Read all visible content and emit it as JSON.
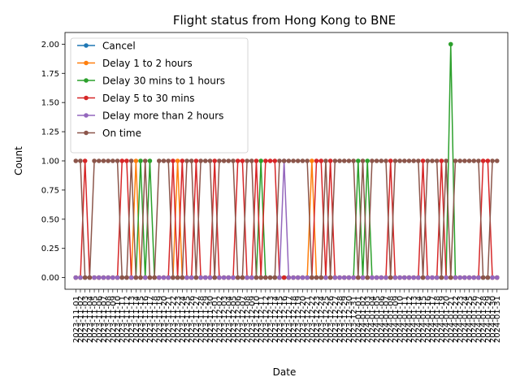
{
  "chart_data": {
    "type": "line",
    "title": "Flight status from Hong Kong to BNE",
    "xlabel": "Date",
    "ylabel": "Count",
    "ylim": [
      -0.1,
      2.1
    ],
    "yticks": [
      "0.00",
      "0.25",
      "0.50",
      "0.75",
      "1.00",
      "1.25",
      "1.50",
      "1.75",
      "2.00"
    ],
    "grid": false,
    "legend_position": "top-left",
    "x": [
      "2023-11-01",
      "2023-11-02",
      "2023-11-03",
      "2023-11-04",
      "2023-11-05",
      "2023-11-06",
      "2023-11-07",
      "2023-11-08",
      "2023-11-09",
      "2023-11-10",
      "2023-11-11",
      "2023-11-12",
      "2023-11-13",
      "2023-11-14",
      "2023-11-15",
      "2023-11-16",
      "2023-11-17",
      "2023-11-18",
      "2023-11-19",
      "2023-11-20",
      "2023-11-21",
      "2023-11-22",
      "2023-11-23",
      "2023-11-24",
      "2023-11-25",
      "2023-11-26",
      "2023-11-27",
      "2023-11-28",
      "2023-11-29",
      "2023-11-30",
      "2023-12-01",
      "2023-12-02",
      "2023-12-03",
      "2023-12-04",
      "2023-12-05",
      "2023-12-06",
      "2023-12-07",
      "2023-12-08",
      "2023-12-09",
      "2023-12-10",
      "2023-12-11",
      "2023-12-12",
      "2023-12-13",
      "2023-12-14",
      "2023-12-15",
      "2023-12-16",
      "2023-12-17",
      "2023-12-18",
      "2023-12-19",
      "2023-12-20",
      "2023-12-21",
      "2023-12-22",
      "2023-12-23",
      "2023-12-24",
      "2023-12-25",
      "2023-12-26",
      "2023-12-27",
      "2023-12-28",
      "2023-12-29",
      "2023-12-30",
      "2023-12-31",
      "2024-01-01",
      "2024-01-02",
      "2024-01-03",
      "2024-01-04",
      "2024-01-05",
      "2024-01-06",
      "2024-01-07",
      "2024-01-08",
      "2024-01-09",
      "2024-01-10",
      "2024-01-11",
      "2024-01-12",
      "2024-01-13",
      "2024-01-14",
      "2024-01-15",
      "2024-01-16",
      "2024-01-17",
      "2024-01-18",
      "2024-01-19",
      "2024-01-20",
      "2024-01-21",
      "2024-01-22",
      "2024-01-23",
      "2024-01-24",
      "2024-01-25",
      "2024-01-26",
      "2024-01-27",
      "2024-01-28",
      "2024-01-29",
      "2024-01-30",
      "2024-01-31"
    ],
    "series": [
      {
        "name": "Cancel",
        "color": "#1f77b4",
        "values": [
          0,
          0,
          0,
          0,
          0,
          0,
          0,
          0,
          0,
          0,
          0,
          0,
          0,
          0,
          0,
          0,
          0,
          0,
          0,
          0,
          0,
          0,
          0,
          0,
          0,
          0,
          0,
          0,
          0,
          0,
          0,
          0,
          0,
          0,
          0,
          0,
          0,
          0,
          0,
          0,
          0,
          0,
          0,
          0,
          0,
          0,
          0,
          0,
          0,
          0,
          0,
          0,
          0,
          0,
          0,
          0,
          0,
          0,
          0,
          0,
          0,
          0,
          0,
          0,
          0,
          0,
          0,
          0,
          0,
          0,
          0,
          0,
          0,
          0,
          0,
          0,
          0,
          0,
          0,
          0,
          0,
          0,
          0,
          0,
          0,
          0,
          0,
          0,
          0,
          0,
          0,
          0
        ]
      },
      {
        "name": "Delay 1 to 2 hours",
        "color": "#ff7f0e",
        "values": [
          0,
          0,
          0,
          0,
          0,
          0,
          0,
          0,
          0,
          0,
          0,
          0,
          0,
          1,
          0,
          0,
          0,
          0,
          0,
          0,
          0,
          0,
          1,
          0,
          0,
          0,
          0,
          0,
          0,
          0,
          0,
          0,
          0,
          0,
          0,
          0,
          0,
          0,
          0,
          0,
          0,
          0,
          0,
          0,
          0,
          0,
          0,
          0,
          0,
          0,
          0,
          1,
          0,
          0,
          0,
          0,
          0,
          0,
          0,
          0,
          0,
          0,
          0,
          0,
          0,
          0,
          0,
          0,
          0,
          0,
          0,
          0,
          0,
          0,
          0,
          0,
          0,
          0,
          0,
          0,
          0,
          0,
          0,
          0,
          0,
          0,
          0,
          0,
          0,
          0,
          0,
          0
        ]
      },
      {
        "name": "Delay 30 mins to 1 hours",
        "color": "#2ca02c",
        "values": [
          0,
          0,
          0,
          0,
          0,
          0,
          0,
          0,
          0,
          0,
          0,
          0,
          0,
          0,
          1,
          0,
          1,
          0,
          0,
          0,
          0,
          0,
          0,
          0,
          0,
          0,
          0,
          0,
          0,
          0,
          0,
          0,
          0,
          0,
          0,
          0,
          0,
          0,
          0,
          0,
          1,
          0,
          0,
          0,
          0,
          0,
          0,
          0,
          0,
          0,
          0,
          0,
          0,
          0,
          0,
          0,
          0,
          0,
          0,
          0,
          0,
          1,
          0,
          1,
          0,
          0,
          0,
          0,
          0,
          0,
          0,
          0,
          0,
          0,
          0,
          0,
          0,
          0,
          0,
          0,
          0,
          2,
          0,
          0,
          0,
          0,
          0,
          0,
          0,
          0,
          0,
          0
        ]
      },
      {
        "name": "Delay 5 to 30 mins",
        "color": "#d62728",
        "values": [
          0,
          0,
          1,
          0,
          0,
          0,
          0,
          0,
          0,
          0,
          1,
          1,
          0,
          0,
          0,
          0,
          0,
          0,
          0,
          0,
          0,
          1,
          0,
          1,
          0,
          0,
          1,
          0,
          0,
          0,
          1,
          0,
          0,
          0,
          0,
          1,
          1,
          0,
          0,
          1,
          0,
          1,
          1,
          1,
          0,
          0,
          0,
          0,
          0,
          0,
          0,
          0,
          1,
          1,
          0,
          1,
          0,
          0,
          0,
          0,
          0,
          0,
          0,
          0,
          0,
          0,
          0,
          0,
          1,
          0,
          0,
          0,
          0,
          0,
          0,
          1,
          0,
          0,
          0,
          1,
          0,
          0,
          0,
          0,
          0,
          0,
          0,
          0,
          1,
          1,
          0,
          0
        ]
      },
      {
        "name": "Delay more than 2 hours",
        "color": "#9467bd",
        "values": [
          0,
          0,
          0,
          0,
          0,
          0,
          0,
          0,
          0,
          0,
          0,
          0,
          0,
          0,
          0,
          0,
          0,
          0,
          0,
          0,
          0,
          0,
          0,
          0,
          0,
          0,
          0,
          0,
          0,
          0,
          0,
          0,
          0,
          0,
          0,
          0,
          0,
          0,
          0,
          0,
          0,
          0,
          0,
          0,
          0,
          1,
          0,
          0,
          0,
          0,
          0,
          0,
          0,
          0,
          0,
          0,
          0,
          0,
          0,
          0,
          0,
          0,
          0,
          0,
          0,
          0,
          0,
          0,
          0,
          0,
          0,
          0,
          0,
          0,
          0,
          0,
          0,
          0,
          0,
          0,
          0,
          0,
          0,
          0,
          0,
          0,
          0,
          0,
          0,
          0,
          0,
          0
        ]
      },
      {
        "name": "On time",
        "color": "#8c564b",
        "values": [
          1,
          1,
          0,
          0,
          1,
          1,
          1,
          1,
          1,
          1,
          0,
          0,
          1,
          0,
          0,
          1,
          0,
          0,
          1,
          1,
          1,
          0,
          0,
          0,
          1,
          1,
          0,
          1,
          1,
          1,
          0,
          1,
          1,
          1,
          1,
          0,
          0,
          1,
          1,
          0,
          0,
          0,
          0,
          0,
          1,
          1,
          1,
          1,
          1,
          1,
          1,
          0,
          0,
          0,
          1,
          0,
          1,
          1,
          1,
          1,
          1,
          0,
          1,
          0,
          1,
          1,
          1,
          1,
          0,
          1,
          1,
          1,
          1,
          1,
          1,
          0,
          1,
          1,
          1,
          0,
          1,
          0,
          1,
          1,
          1,
          1,
          1,
          1,
          0,
          0,
          1,
          1
        ]
      }
    ]
  }
}
